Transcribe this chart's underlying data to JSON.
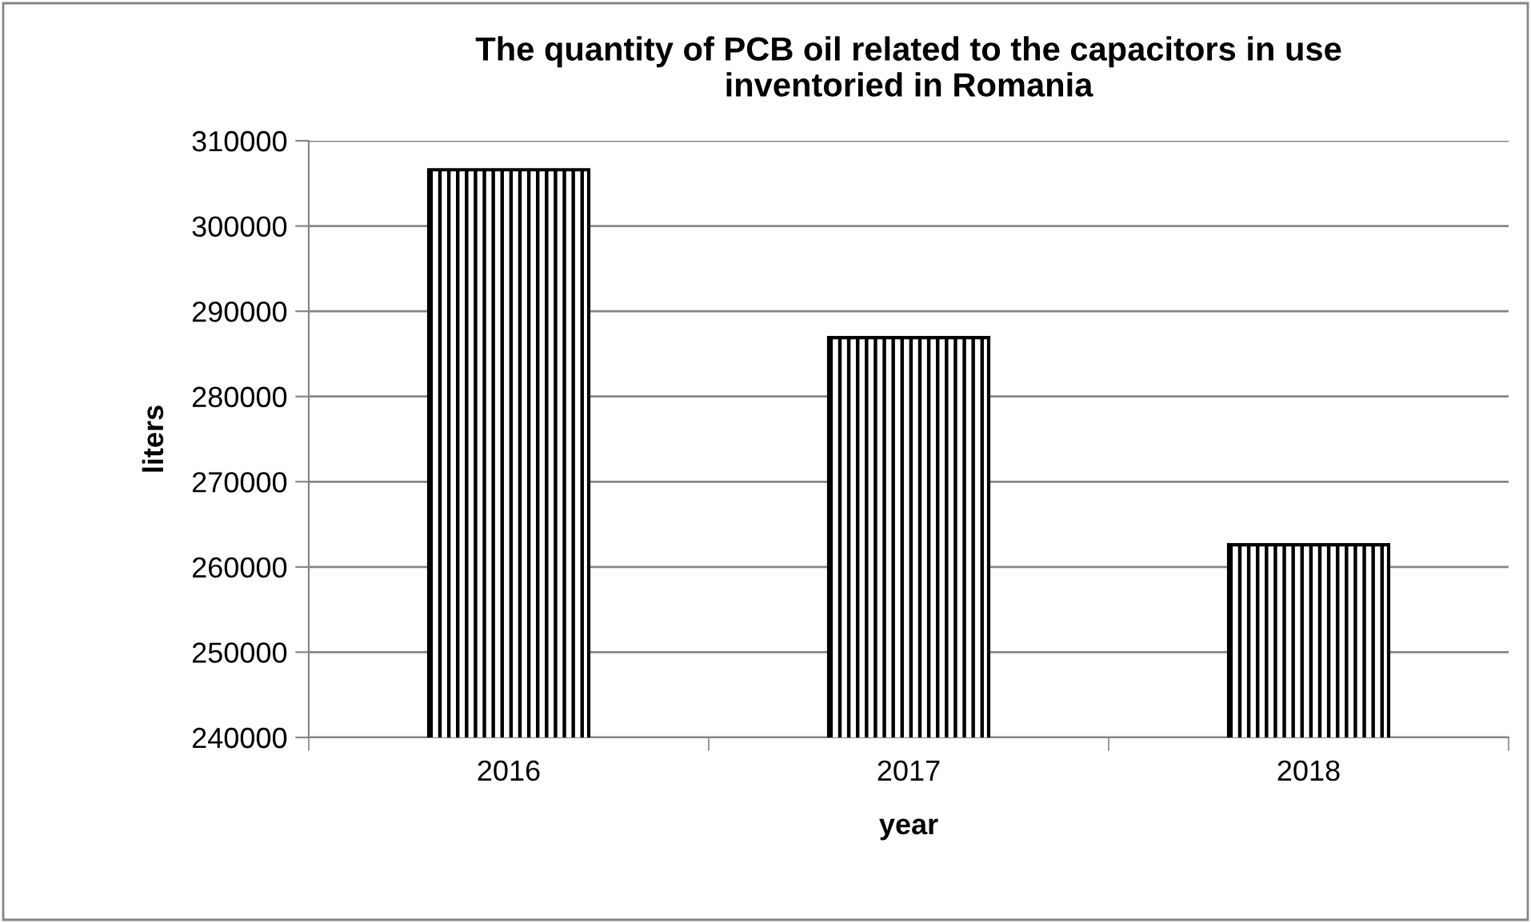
{
  "chart_data": {
    "type": "bar",
    "title": "The quantity of PCB oil related to the capacitors in use\ninventoried in Romania",
    "xlabel": "year",
    "ylabel": "liters",
    "categories": [
      "2016",
      "2017",
      "2018"
    ],
    "values": [
      306600,
      286900,
      262600
    ],
    "color": "#000000",
    "ylim": [
      240000,
      310000
    ],
    "yticks": [
      240000,
      250000,
      260000,
      270000,
      280000,
      290000,
      300000,
      310000
    ],
    "grid": "y",
    "legend": false
  }
}
